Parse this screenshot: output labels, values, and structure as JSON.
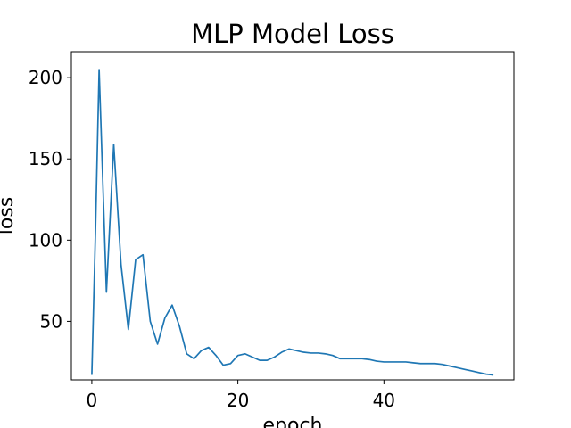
{
  "chart_data": {
    "type": "line",
    "title": "MLP Model Loss",
    "xlabel": "epoch",
    "ylabel": "loss",
    "xlim": [
      -2.8,
      57.8
    ],
    "ylim": [
      14,
      216
    ],
    "xticks": [
      0,
      20,
      40
    ],
    "yticks": [
      50,
      100,
      150,
      200
    ],
    "grid": false,
    "series": [
      {
        "color": "#1f77b4",
        "x": [
          0,
          0.5,
          1,
          2,
          3,
          4,
          5,
          6,
          7,
          8,
          9,
          10,
          11,
          12,
          13,
          14,
          15,
          16,
          17,
          18,
          19,
          20,
          21,
          22,
          23,
          24,
          25,
          26,
          27,
          28,
          29,
          30,
          31,
          32,
          33,
          34,
          35,
          36,
          37,
          38,
          39,
          40,
          41,
          42,
          43,
          44,
          45,
          46,
          47,
          48,
          49,
          50,
          51,
          52,
          53,
          54,
          55
        ],
        "y": [
          17,
          105,
          205,
          68,
          159,
          85,
          45,
          88,
          91,
          50,
          36,
          52,
          60,
          47,
          30,
          27,
          32,
          34,
          29,
          23,
          24,
          29,
          30,
          28,
          26,
          26,
          28,
          31,
          33,
          32,
          31,
          30.5,
          30.5,
          30,
          29,
          27,
          27,
          27,
          27,
          26.5,
          25.5,
          25,
          25,
          25,
          25,
          24.5,
          24,
          24,
          24,
          23.5,
          22.5,
          21.5,
          20.5,
          19.5,
          18.5,
          17.5,
          17
        ]
      }
    ]
  }
}
